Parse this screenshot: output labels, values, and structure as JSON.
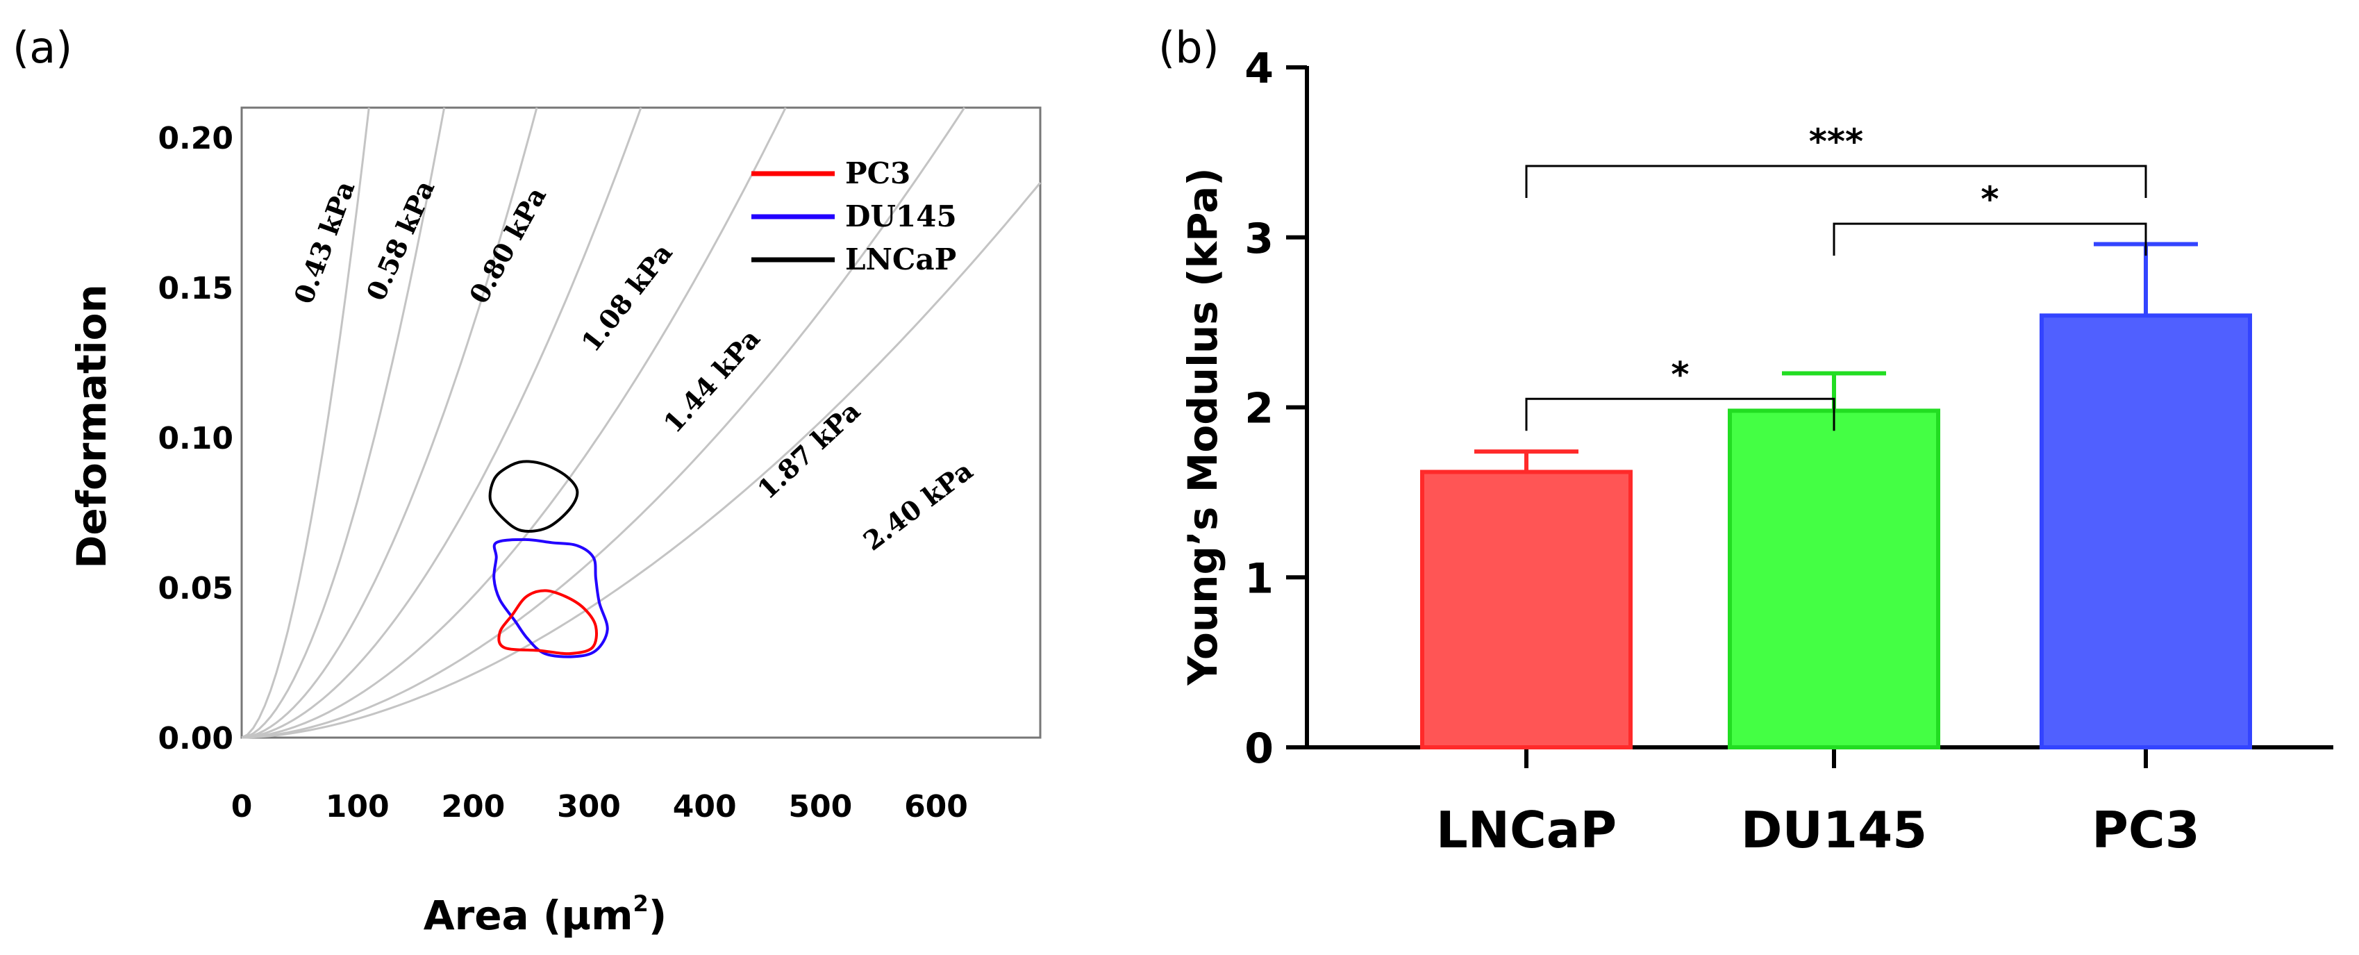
{
  "chart_data": [
    {
      "type": "scatter",
      "panel_label": "(a)",
      "xlabel": "Area (µm",
      "xlabel_sup": "2",
      "xlabel_close": ")",
      "ylabel": "Deformation",
      "xlim": [
        0,
        690
      ],
      "ylim": [
        0,
        0.21
      ],
      "x_ticks": [
        "0",
        "100",
        "200",
        "300",
        "400",
        "500",
        "600"
      ],
      "x_tick_values": [
        0,
        100,
        200,
        300,
        400,
        500,
        600
      ],
      "y_ticks": [
        "0.00",
        "0.05",
        "0.10",
        "0.15",
        "0.20"
      ],
      "y_tick_values": [
        0,
        0.05,
        0.1,
        0.15,
        0.2
      ],
      "isoelasticity_lines": [
        {
          "label": "0.43 kPa",
          "modulus_kpa": 0.43
        },
        {
          "label": "0.58 kPa",
          "modulus_kpa": 0.58
        },
        {
          "label": "0.80 kPa",
          "modulus_kpa": 0.8
        },
        {
          "label": "1.08 kPa",
          "modulus_kpa": 1.08
        },
        {
          "label": "1.44 kPa",
          "modulus_kpa": 1.44
        },
        {
          "label": "1.87 kPa",
          "modulus_kpa": 1.87
        },
        {
          "label": "2.40 kPa",
          "modulus_kpa": 2.4
        }
      ],
      "legend": [
        {
          "label": "PC3",
          "color": "#ff0000"
        },
        {
          "label": "DU145",
          "color": "#2200ff"
        },
        {
          "label": "LNCaP",
          "color": "#000000"
        }
      ],
      "contours": [
        {
          "name": "LNCaP",
          "color": "#000000",
          "points": [
            [
              243,
              0.092
            ],
            [
              262,
              0.091
            ],
            [
              281,
              0.087
            ],
            [
              290,
              0.082
            ],
            [
              283,
              0.076
            ],
            [
              264,
              0.07
            ],
            [
              242,
              0.069
            ],
            [
              226,
              0.073
            ],
            [
              215,
              0.079
            ],
            [
              218,
              0.086
            ],
            [
              229,
              0.09
            ]
          ]
        },
        {
          "name": "DU145",
          "color": "#2200ff",
          "points": [
            [
              220,
              0.065
            ],
            [
              245,
              0.066
            ],
            [
              268,
              0.065
            ],
            [
              290,
              0.064
            ],
            [
              304,
              0.06
            ],
            [
              306,
              0.053
            ],
            [
              309,
              0.045
            ],
            [
              316,
              0.036
            ],
            [
              306,
              0.029
            ],
            [
              287,
              0.027
            ],
            [
              262,
              0.028
            ],
            [
              247,
              0.033
            ],
            [
              236,
              0.039
            ],
            [
              223,
              0.046
            ],
            [
              218,
              0.053
            ],
            [
              220,
              0.06
            ]
          ]
        },
        {
          "name": "PC3",
          "color": "#ff0000",
          "points": [
            [
              262,
              0.049
            ],
            [
              280,
              0.047
            ],
            [
              296,
              0.043
            ],
            [
              306,
              0.037
            ],
            [
              303,
              0.03
            ],
            [
              283,
              0.028
            ],
            [
              258,
              0.029
            ],
            [
              227,
              0.03
            ],
            [
              223,
              0.035
            ],
            [
              234,
              0.041
            ],
            [
              246,
              0.047
            ]
          ]
        }
      ]
    },
    {
      "type": "bar",
      "panel_label": "(b)",
      "ylabel": "Young’s Modulus (kPa)",
      "xlabel": "",
      "ylim": [
        0,
        4
      ],
      "y_ticks": [
        "0",
        "1",
        "2",
        "3",
        "4"
      ],
      "y_tick_values": [
        0,
        1,
        2,
        3,
        4
      ],
      "categories": [
        "LNCaP",
        "DU145",
        "PC3"
      ],
      "values": [
        1.62,
        1.98,
        2.54
      ],
      "errors": [
        0.12,
        0.22,
        0.42
      ],
      "colors": [
        "#ff5555",
        "#44ff44",
        "#5060ff"
      ],
      "edge_colors": [
        "#ff2a2a",
        "#22dd22",
        "#3344ff"
      ],
      "significance": [
        {
          "from": "LNCaP",
          "to": "DU145",
          "label": "*",
          "y": 2.05
        },
        {
          "from": "DU145",
          "to": "PC3",
          "label": "*",
          "y": 3.08
        },
        {
          "from": "LNCaP",
          "to": "PC3",
          "label": "***",
          "y": 3.42
        }
      ]
    }
  ]
}
